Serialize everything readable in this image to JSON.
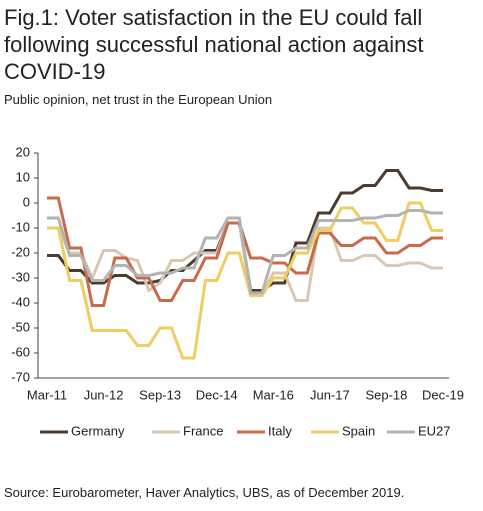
{
  "chart_data": {
    "type": "line",
    "title": "Fig.1: Voter satisfaction in the EU could fall following successful national action against COVID-19",
    "subtitle": "Public opinion, net trust in the European Union",
    "source": "Source: Eurobarometer, Haver Analytics, UBS, as of December 2019.",
    "categories": [
      "Mar-11",
      null,
      null,
      null,
      null,
      "Jun-12",
      null,
      null,
      null,
      null,
      "Sep-13",
      null,
      null,
      null,
      null,
      "Dec-14",
      null,
      null,
      null,
      null,
      "Mar-16",
      null,
      null,
      null,
      null,
      "Jun-17",
      null,
      null,
      null,
      null,
      "Sep-18",
      null,
      null,
      null,
      null,
      "Dec-19"
    ],
    "ylim": [
      -70,
      20
    ],
    "yticks": [
      20,
      10,
      0,
      -10,
      -20,
      -30,
      -40,
      -50,
      -60,
      -70
    ],
    "grid": false,
    "legend": "bottom",
    "series": [
      {
        "name": "Germany",
        "color": "#4d3b2f",
        "values": [
          -21,
          -21,
          -27,
          -27,
          -32,
          -32,
          -29,
          -29,
          -32,
          -32,
          -31,
          -27,
          -27,
          -23,
          -19,
          -19,
          -8,
          -8,
          -35,
          -35,
          -32,
          -32,
          -16,
          -16,
          -4,
          -4,
          4,
          4,
          7,
          7,
          13,
          13,
          6,
          6,
          5,
          5
        ]
      },
      {
        "name": "France",
        "color": "#d9c9b1",
        "values": [
          -10,
          -10,
          -20,
          -20,
          -30,
          -19,
          -19,
          -22,
          -23,
          -35,
          -32,
          -23,
          -23,
          -20,
          -20,
          -20,
          -8,
          -8,
          -37,
          -37,
          -28,
          -28,
          -39,
          -39,
          -10,
          -10,
          -23,
          -23,
          -21,
          -21,
          -25,
          -25,
          -24,
          -24,
          -26,
          -26
        ]
      },
      {
        "name": "Italy",
        "color": "#c86a4c",
        "values": [
          2,
          2,
          -18,
          -18,
          -41,
          -41,
          -22,
          -22,
          -30,
          -30,
          -39,
          -39,
          -31,
          -31,
          -22,
          -22,
          -8,
          -8,
          -22,
          -22,
          -24,
          -24,
          -28,
          -28,
          -12,
          -12,
          -17,
          -17,
          -14,
          -14,
          -20,
          -20,
          -17,
          -17,
          -14,
          -14
        ]
      },
      {
        "name": "Spain",
        "color": "#f0cd62",
        "values": [
          -10,
          -10,
          -31,
          -31,
          -51,
          -51,
          -51,
          -51,
          -57,
          -57,
          -50,
          -50,
          -62,
          -62,
          -31,
          -31,
          -20,
          -20,
          -37,
          -37,
          -30,
          -30,
          -20,
          -20,
          -11,
          -11,
          -2,
          -2,
          -8,
          -8,
          -15,
          -15,
          0,
          0,
          -11,
          -11
        ]
      },
      {
        "name": "EU27",
        "color": "#b3b3b3",
        "values": [
          -6,
          -6,
          -21,
          -21,
          -31,
          -31,
          -25,
          -25,
          -29,
          -29,
          -28,
          -28,
          -26,
          -26,
          -14,
          -14,
          -6,
          -6,
          -36,
          -36,
          -21,
          -21,
          -18,
          -18,
          -7,
          -7,
          -7,
          -7,
          -6,
          -6,
          -5,
          -5,
          -3,
          -3,
          -4,
          -4
        ]
      }
    ]
  }
}
